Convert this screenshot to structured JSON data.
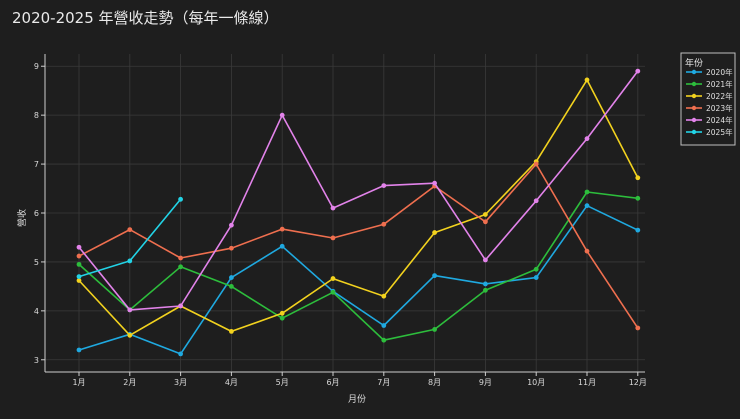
{
  "chart_data": {
    "type": "line",
    "title": "2020-2025 年營收走勢（每年一條線）",
    "xlabel": "月份",
    "ylabel": "營收",
    "categories": [
      "1月",
      "2月",
      "3月",
      "4月",
      "5月",
      "6月",
      "7月",
      "8月",
      "9月",
      "10月",
      "11月",
      "12月"
    ],
    "ylim": [
      2.75,
      9.25
    ],
    "yticks": [
      3,
      4,
      5,
      6,
      7,
      8,
      9
    ],
    "grid": true,
    "legend": {
      "title": "年份",
      "placement": "top-right"
    },
    "series": [
      {
        "name": "2020年",
        "color": "#1fa9e0",
        "values": [
          3.2,
          3.52,
          3.12,
          4.68,
          5.32,
          4.4,
          3.7,
          4.72,
          4.55,
          4.68,
          6.15,
          5.65
        ]
      },
      {
        "name": "2021年",
        "color": "#2dbd3c",
        "values": [
          4.95,
          4.02,
          4.9,
          4.5,
          3.85,
          4.38,
          3.4,
          3.62,
          4.42,
          4.85,
          6.43,
          6.3
        ]
      },
      {
        "name": "2022年",
        "color": "#f2d21e",
        "values": [
          4.62,
          3.5,
          4.1,
          3.58,
          3.95,
          4.66,
          4.3,
          5.6,
          5.97,
          7.05,
          8.72,
          6.72
        ]
      },
      {
        "name": "2023年",
        "color": "#ef6f4f",
        "values": [
          5.12,
          5.66,
          5.08,
          5.28,
          5.67,
          5.49,
          5.77,
          6.55,
          5.82,
          7.0,
          5.22,
          3.65
        ]
      },
      {
        "name": "2024年",
        "color": "#e283ea",
        "values": [
          5.3,
          4.02,
          4.1,
          5.75,
          8.0,
          6.1,
          6.56,
          6.61,
          5.04,
          6.25,
          7.52,
          8.9
        ]
      },
      {
        "name": "2025年",
        "color": "#22d3e6",
        "values": [
          4.7,
          5.02,
          6.28,
          null,
          null,
          null,
          null,
          null,
          null,
          null,
          null,
          null
        ]
      }
    ]
  }
}
